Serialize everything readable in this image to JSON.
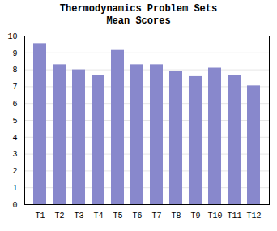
{
  "chart_data": {
    "type": "bar",
    "title": "Thermodynamics Problem Sets",
    "subtitle": "Mean Scores",
    "categories": [
      "T1",
      "T2",
      "T3",
      "T4",
      "T5",
      "T6",
      "T7",
      "T8",
      "T9",
      "T10",
      "T11",
      "T12"
    ],
    "values": [
      9.55,
      8.3,
      8.0,
      7.65,
      9.15,
      8.3,
      8.3,
      7.9,
      7.6,
      8.1,
      7.65,
      7.05
    ],
    "color": "#8888cc",
    "ylim": [
      0,
      10
    ],
    "yticks": [
      0,
      1,
      2,
      3,
      4,
      5,
      6,
      7,
      8,
      9,
      10
    ],
    "grid": true
  }
}
